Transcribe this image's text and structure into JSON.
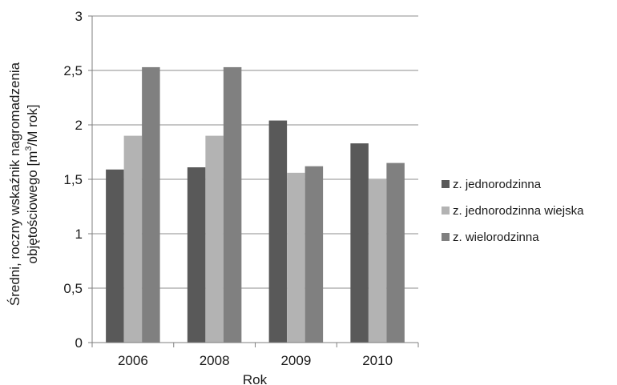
{
  "chart_data": {
    "type": "bar",
    "categories": [
      "2006",
      "2008",
      "2009",
      "2010"
    ],
    "series": [
      {
        "name": "z. jednorodzinna",
        "color": "#595959",
        "values": [
          1.59,
          1.61,
          2.04,
          1.83
        ]
      },
      {
        "name": "z. jednorodzinna wiejska",
        "color": "#b3b3b3",
        "values": [
          1.9,
          1.9,
          1.56,
          1.5
        ]
      },
      {
        "name": "z. wielorodzinna",
        "color": "#808080",
        "values": [
          2.53,
          2.53,
          1.62,
          1.65
        ]
      }
    ],
    "xlabel": "Rok",
    "ylabel_line1": "Średni, roczny wskaźnik nagromadzenia",
    "ylabel_line2_prefix": "objętościowego [m",
    "ylabel_line2_sup": "3",
    "ylabel_line2_suffix": "/M rok]",
    "ylim": [
      0,
      3
    ],
    "yticks": [
      0,
      0.5,
      1,
      1.5,
      2,
      2.5,
      3
    ],
    "ytick_labels": [
      "0",
      "0,5",
      "1",
      "1,5",
      "2",
      "2,5",
      "3"
    ],
    "grid": true,
    "legend_position": "right"
  }
}
